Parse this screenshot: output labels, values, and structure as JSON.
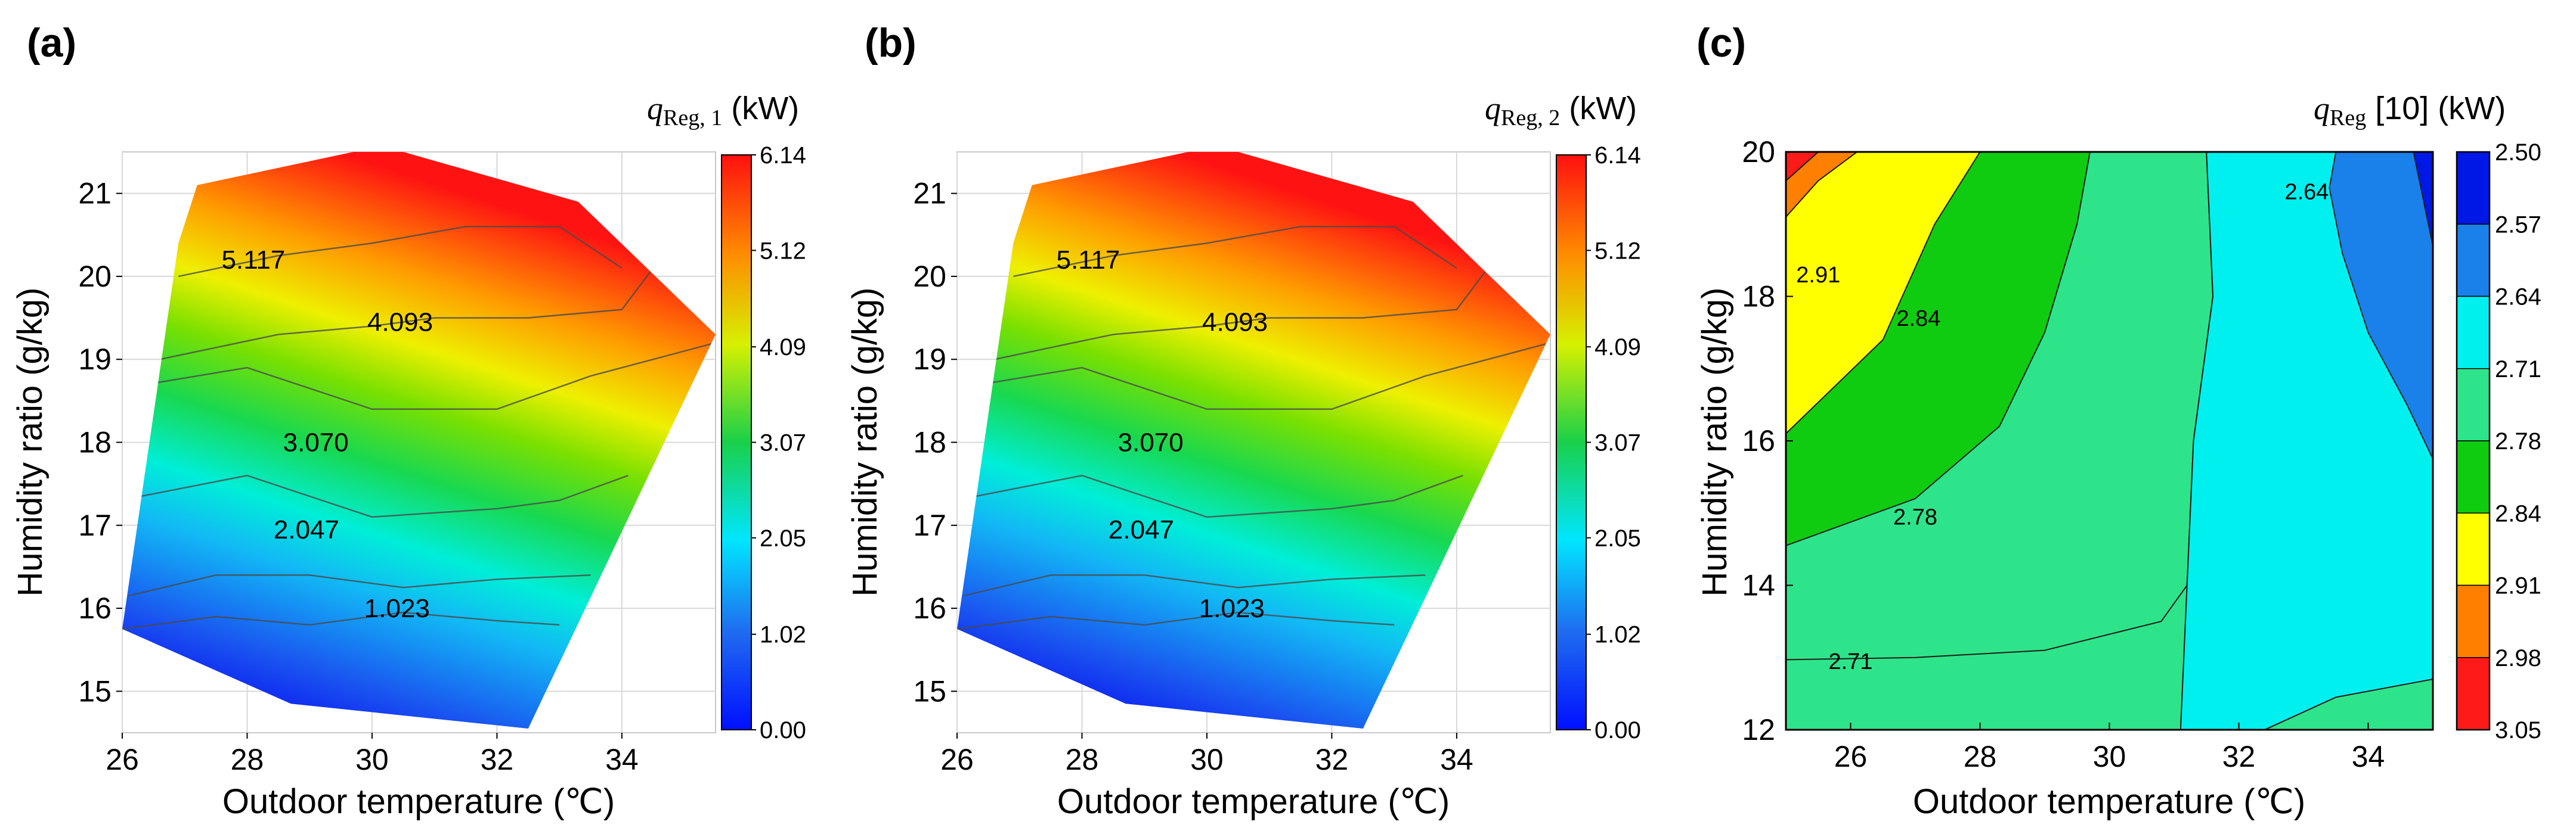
{
  "chart_data": [
    {
      "type": "contour",
      "panel_label": "(a)",
      "xlabel": "Outdoor temperature (℃)",
      "ylabel": "Humidity ratio (g/kg)",
      "xlim": [
        26,
        35.5
      ],
      "ylim": [
        14.5,
        21.5
      ],
      "xticks": [
        "26",
        "28",
        "30",
        "32",
        "34"
      ],
      "xtick_values": [
        26,
        28,
        30,
        32,
        34
      ],
      "yticks": [
        "15",
        "16",
        "17",
        "18",
        "19",
        "20",
        "21"
      ],
      "ytick_values": [
        15,
        16,
        17,
        18,
        19,
        20,
        21
      ],
      "colorbar": {
        "title_symbol": "q",
        "title_sub": "Reg, 1",
        "title_unit": " (kW)",
        "range": [
          0.0,
          6.14
        ],
        "tick_labels": [
          "6.14",
          "5.12",
          "4.09",
          "3.07",
          "2.05",
          "1.02",
          "0.00"
        ],
        "tick_values": [
          6.14,
          5.12,
          4.09,
          3.07,
          2.05,
          1.02,
          0.0
        ]
      },
      "contour_labels": [
        {
          "text": "5.117",
          "x": 28.1,
          "y": 20.2
        },
        {
          "text": "4.093",
          "x": 30.45,
          "y": 19.45
        },
        {
          "text": "3.070",
          "x": 29.1,
          "y": 18.0
        },
        {
          "text": "2.047",
          "x": 28.95,
          "y": 16.95
        },
        {
          "text": "1.023",
          "x": 30.4,
          "y": 16.0
        }
      ],
      "domain_polygon": [
        [
          27.2,
          21.1
        ],
        [
          29.7,
          21.5
        ],
        [
          30.5,
          21.5
        ],
        [
          33.3,
          20.9
        ],
        [
          35.5,
          19.3
        ],
        [
          32.5,
          14.55
        ],
        [
          28.7,
          14.85
        ],
        [
          26.0,
          15.75
        ],
        [
          26.9,
          20.4
        ]
      ],
      "contour_lines": [
        {
          "level": 5.117,
          "points": [
            [
              26.9,
              20.0
            ],
            [
              28.5,
              20.25
            ],
            [
              30.0,
              20.4
            ],
            [
              31.5,
              20.6
            ],
            [
              33.0,
              20.6
            ],
            [
              34.0,
              20.1
            ]
          ]
        },
        {
          "level": 4.093,
          "points": [
            [
              26.6,
              19.0
            ],
            [
              28.5,
              19.3
            ],
            [
              30.0,
              19.4
            ],
            [
              31.0,
              19.5
            ],
            [
              32.5,
              19.5
            ],
            [
              34.0,
              19.6
            ],
            [
              34.5,
              20.1
            ]
          ]
        },
        {
          "level": 3.07,
          "points": [
            [
              26.4,
              18.7
            ],
            [
              28.0,
              18.9
            ],
            [
              30.0,
              18.4
            ],
            [
              32.0,
              18.4
            ],
            [
              33.5,
              18.8
            ],
            [
              35.5,
              19.2
            ]
          ]
        },
        {
          "level": 2.047,
          "points": [
            [
              26.3,
              17.35
            ],
            [
              28.0,
              17.6
            ],
            [
              30.0,
              17.1
            ],
            [
              32.0,
              17.2
            ],
            [
              33.0,
              17.3
            ],
            [
              34.1,
              17.6
            ]
          ]
        },
        {
          "level": 1.023,
          "points": [
            [
              26.1,
              16.15
            ],
            [
              27.5,
              16.4
            ],
            [
              29.0,
              16.4
            ],
            [
              30.5,
              16.25
            ],
            [
              32.0,
              16.35
            ],
            [
              33.5,
              16.4
            ]
          ]
        },
        {
          "level": 0.5,
          "points": [
            [
              26.0,
              15.75
            ],
            [
              27.5,
              15.9
            ],
            [
              29.0,
              15.8
            ],
            [
              30.5,
              15.95
            ],
            [
              32.0,
              15.85
            ],
            [
              33.0,
              15.8
            ]
          ]
        }
      ]
    },
    {
      "type": "contour",
      "panel_label": "(b)",
      "xlabel": "Outdoor temperature (℃)",
      "ylabel": "Humidity ratio (g/kg)",
      "xlim": [
        26,
        35.5
      ],
      "ylim": [
        14.5,
        21.5
      ],
      "xticks": [
        "26",
        "28",
        "30",
        "32",
        "34"
      ],
      "xtick_values": [
        26,
        28,
        30,
        32,
        34
      ],
      "yticks": [
        "15",
        "16",
        "17",
        "18",
        "19",
        "20",
        "21"
      ],
      "ytick_values": [
        15,
        16,
        17,
        18,
        19,
        20,
        21
      ],
      "colorbar": {
        "title_symbol": "q",
        "title_sub": "Reg, 2",
        "title_unit": " (kW)",
        "range": [
          0.0,
          6.14
        ],
        "tick_labels": [
          "6.14",
          "5.12",
          "4.09",
          "3.07",
          "2.05",
          "1.02",
          "0.00"
        ],
        "tick_values": [
          6.14,
          5.12,
          4.09,
          3.07,
          2.05,
          1.02,
          0.0
        ]
      },
      "contour_labels": [
        {
          "text": "5.117",
          "x": 28.1,
          "y": 20.2
        },
        {
          "text": "4.093",
          "x": 30.45,
          "y": 19.45
        },
        {
          "text": "3.070",
          "x": 29.1,
          "y": 18.0
        },
        {
          "text": "2.047",
          "x": 28.95,
          "y": 16.95
        },
        {
          "text": "1.023",
          "x": 30.4,
          "y": 16.0
        }
      ],
      "domain_polygon": [
        [
          27.2,
          21.1
        ],
        [
          29.7,
          21.5
        ],
        [
          30.5,
          21.5
        ],
        [
          33.3,
          20.9
        ],
        [
          35.5,
          19.3
        ],
        [
          32.5,
          14.55
        ],
        [
          28.7,
          14.85
        ],
        [
          26.0,
          15.75
        ],
        [
          26.9,
          20.4
        ]
      ],
      "contour_lines": [
        {
          "level": 5.117,
          "points": [
            [
              26.9,
              20.0
            ],
            [
              28.5,
              20.25
            ],
            [
              30.0,
              20.4
            ],
            [
              31.5,
              20.6
            ],
            [
              33.0,
              20.6
            ],
            [
              34.0,
              20.1
            ]
          ]
        },
        {
          "level": 4.093,
          "points": [
            [
              26.6,
              19.0
            ],
            [
              28.5,
              19.3
            ],
            [
              30.0,
              19.4
            ],
            [
              31.0,
              19.5
            ],
            [
              32.5,
              19.5
            ],
            [
              34.0,
              19.6
            ],
            [
              34.5,
              20.1
            ]
          ]
        },
        {
          "level": 3.07,
          "points": [
            [
              26.4,
              18.7
            ],
            [
              28.0,
              18.9
            ],
            [
              30.0,
              18.4
            ],
            [
              32.0,
              18.4
            ],
            [
              33.5,
              18.8
            ],
            [
              35.5,
              19.2
            ]
          ]
        },
        {
          "level": 2.047,
          "points": [
            [
              26.3,
              17.35
            ],
            [
              28.0,
              17.6
            ],
            [
              30.0,
              17.1
            ],
            [
              32.0,
              17.2
            ],
            [
              33.0,
              17.3
            ],
            [
              34.1,
              17.6
            ]
          ]
        },
        {
          "level": 1.023,
          "points": [
            [
              26.1,
              16.15
            ],
            [
              27.5,
              16.4
            ],
            [
              29.0,
              16.4
            ],
            [
              30.5,
              16.25
            ],
            [
              32.0,
              16.35
            ],
            [
              33.5,
              16.4
            ]
          ]
        },
        {
          "level": 0.5,
          "points": [
            [
              26.0,
              15.75
            ],
            [
              27.5,
              15.9
            ],
            [
              29.0,
              15.8
            ],
            [
              30.5,
              15.95
            ],
            [
              32.0,
              15.85
            ],
            [
              33.0,
              15.8
            ]
          ]
        }
      ]
    },
    {
      "type": "filled-contour",
      "panel_label": "(c)",
      "xlabel": "Outdoor temperature (℃)",
      "ylabel": "Humidity ratio (g/kg)",
      "xlim": [
        25,
        35
      ],
      "ylim": [
        12,
        20
      ],
      "xticks": [
        "26",
        "28",
        "30",
        "32",
        "34"
      ],
      "xtick_values": [
        26,
        28,
        30,
        32,
        34
      ],
      "yticks": [
        "12",
        "14",
        "16",
        "18",
        "20"
      ],
      "ytick_values": [
        12,
        14,
        16,
        18,
        20
      ],
      "colorbar": {
        "title_symbol": "q",
        "title_sub": "Reg",
        "title_bracket": " [10]",
        "title_unit": " (kW)",
        "tick_labels": [
          "2.50",
          "2.57",
          "2.64",
          "2.71",
          "2.78",
          "2.84",
          "2.91",
          "2.98",
          "3.05"
        ],
        "tick_values": [
          2.5,
          2.57,
          2.64,
          2.71,
          2.78,
          2.84,
          2.91,
          2.98,
          3.05
        ],
        "band_colors": [
          "#0018e6",
          "#1a80ea",
          "#00f0f0",
          "#2ee48a",
          "#10cc10",
          "#ffff00",
          "#ff8000",
          "#ff1a1a"
        ]
      },
      "contour_labels": [
        {
          "text": "2.91",
          "x": 25.5,
          "y": 18.3
        },
        {
          "text": "2.84",
          "x": 27.05,
          "y": 17.7
        },
        {
          "text": "2.78",
          "x": 27.0,
          "y": 14.95
        },
        {
          "text": "2.71",
          "x": 26.0,
          "y": 12.95
        },
        {
          "text": "2.64",
          "x": 33.05,
          "y": 19.45
        }
      ],
      "regions": [
        {
          "level": "2.71-2.78",
          "points": [
            [
              25,
              20
            ],
            [
              31.5,
              20
            ],
            [
              31.6,
              18
            ],
            [
              31.3,
              16
            ],
            [
              31.2,
              14
            ],
            [
              30.8,
              13.5
            ],
            [
              29.0,
              13.1
            ],
            [
              27.0,
              13.0
            ],
            [
              25,
              12.97
            ],
            [
              25,
              12
            ],
            [
              32.4,
              12
            ],
            [
              33.5,
              12.45
            ],
            [
              35,
              12.7
            ],
            [
              35,
              20
            ]
          ]
        },
        {
          "level": "2.64-2.71",
          "points": [
            [
              31.5,
              20
            ],
            [
              35,
              20
            ],
            [
              35,
              12.7
            ],
            [
              33.5,
              12.45
            ],
            [
              32.4,
              12
            ],
            [
              31.1,
              12
            ],
            [
              31.2,
              14
            ],
            [
              31.3,
              16
            ],
            [
              31.6,
              18
            ]
          ]
        },
        {
          "level": "2.71-2.78 (bottom-right)",
          "points": [
            [
              32.4,
              12
            ],
            [
              33.5,
              12.45
            ],
            [
              35,
              12.7
            ],
            [
              35,
              12
            ]
          ]
        },
        {
          "level": "2.57-2.64",
          "points": [
            [
              33.5,
              20
            ],
            [
              35,
              20
            ],
            [
              35,
              15.75
            ],
            [
              34.6,
              16.5
            ],
            [
              34.0,
              17.5
            ],
            [
              33.6,
              18.6
            ],
            [
              33.4,
              19.5
            ]
          ]
        },
        {
          "level": "2.50-2.57",
          "points": [
            [
              34.7,
              20
            ],
            [
              35,
              20
            ],
            [
              35,
              18.7
            ]
          ]
        },
        {
          "level": "2.78-2.84",
          "points": [
            [
              25,
              20
            ],
            [
              29.7,
              20
            ],
            [
              29.5,
              19
            ],
            [
              29.0,
              17.5
            ],
            [
              28.3,
              16.2
            ],
            [
              27.0,
              15.2
            ],
            [
              25,
              14.55
            ]
          ]
        },
        {
          "level": "2.84-2.91",
          "points": [
            [
              25,
              20
            ],
            [
              28.0,
              20
            ],
            [
              27.3,
              19.0
            ],
            [
              26.5,
              17.4
            ],
            [
              25,
              16.1
            ]
          ]
        },
        {
          "level": "2.91-2.98",
          "points": [
            [
              25,
              20
            ],
            [
              26.1,
              20
            ],
            [
              25.5,
              19.6
            ],
            [
              25,
              19.1
            ]
          ]
        },
        {
          "level": "2.98-3.05",
          "points": [
            [
              25,
              20
            ],
            [
              25.5,
              20
            ],
            [
              25,
              19.6
            ]
          ]
        }
      ]
    }
  ]
}
